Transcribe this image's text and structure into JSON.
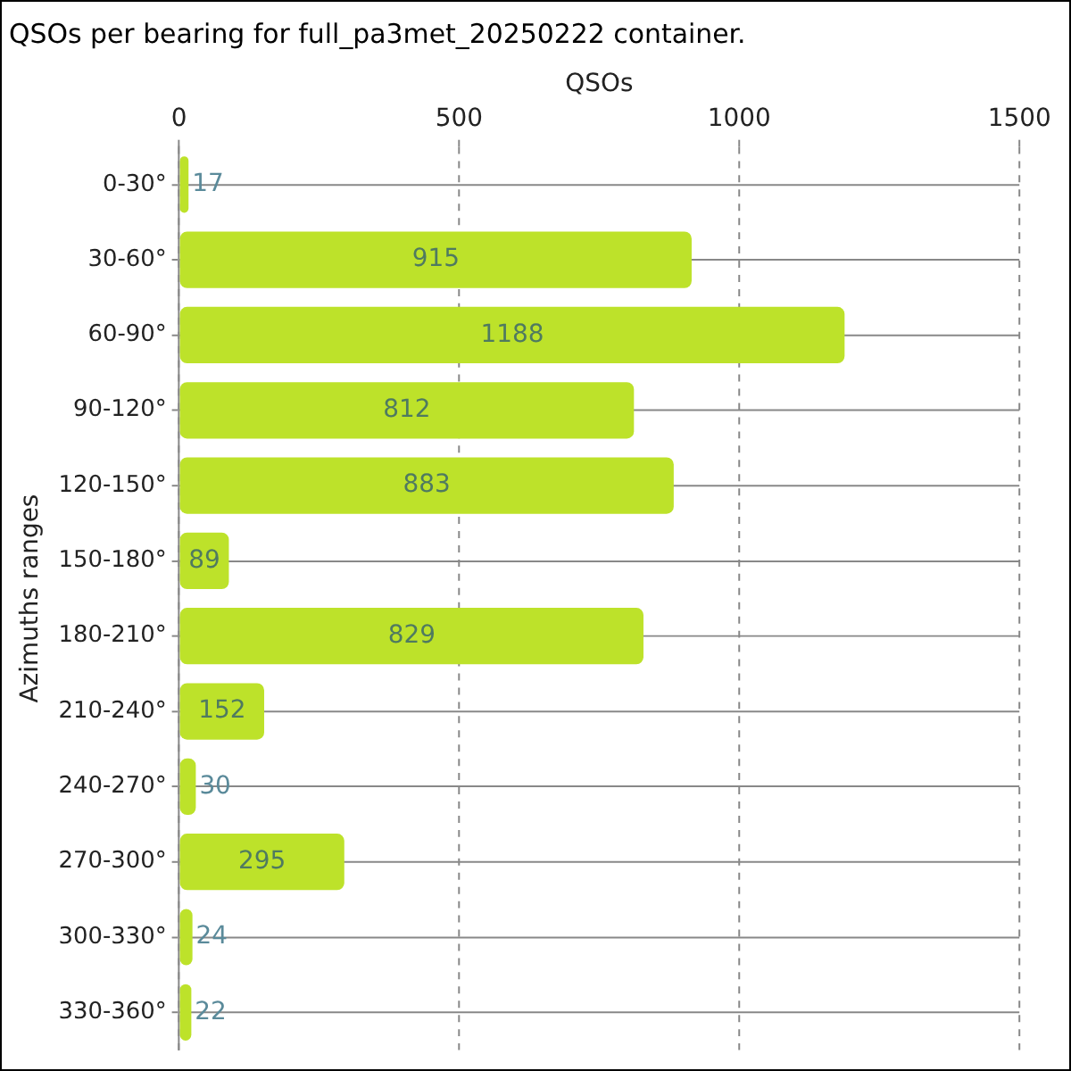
{
  "chart_data": {
    "type": "bar",
    "orientation": "horizontal",
    "title": "QSOs per bearing for full_pa3met_20250222 container.",
    "xlabel": "QSOs",
    "ylabel": "Azimuths ranges",
    "categories": [
      "0-30°",
      "30-60°",
      "60-90°",
      "90-120°",
      "120-150°",
      "150-180°",
      "180-210°",
      "210-240°",
      "240-270°",
      "270-300°",
      "300-330°",
      "330-360°"
    ],
    "values": [
      17,
      915,
      1188,
      812,
      883,
      89,
      829,
      152,
      30,
      295,
      24,
      22
    ],
    "color": "#bde22a",
    "xlim": [
      0,
      1500
    ],
    "xticks": [
      0,
      500,
      1000,
      1500
    ],
    "grid": true,
    "data_labels": true
  }
}
